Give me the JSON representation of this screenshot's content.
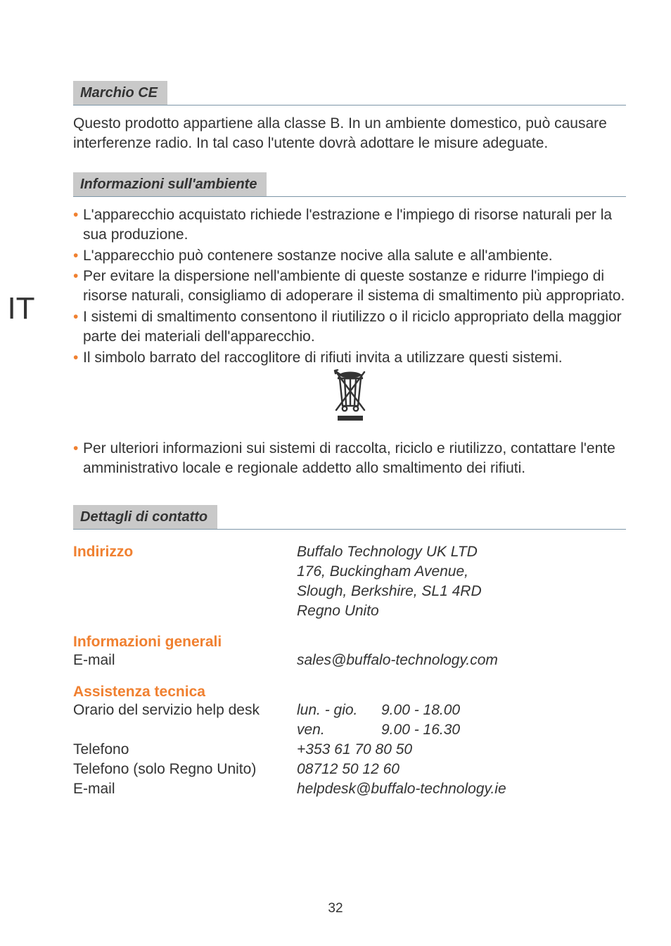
{
  "lang_tab": "IT",
  "section1": {
    "heading": "Marchio CE",
    "paragraph": "Questo prodotto appartiene alla classe B. In un ambiente domestico, può causare interferenze radio. In tal caso l'utente dovrà adottare le misure adeguate."
  },
  "section2": {
    "heading": "Informazioni sull'ambiente",
    "bullets_top": [
      "L'apparecchio acquistato richiede l'estrazione e l'impiego di risorse naturali per la sua produzione.",
      "L'apparecchio può contenere sostanze nocive alla salute e all'ambiente.",
      "Per evitare la dispersione nell'ambiente di queste sostanze e ridurre l'impiego di risorse naturali, consigliamo di adoperare il sistema di smaltimento più appropriato.",
      "I sistemi di smaltimento consentono il riutilizzo o il riciclo appropriato della maggior parte dei materiali dell'apparecchio.",
      "Il simbolo barrato del raccoglitore di rifiuti invita a utilizzare questi sistemi."
    ],
    "bullets_bottom": [
      "Per ulteriori informazioni sui sistemi di raccolta, riciclo e riutilizzo, contattare l'ente amministrativo locale e regionale addetto allo smaltimento dei rifiuti."
    ]
  },
  "section3": {
    "heading": "Dettagli di contatto",
    "address": {
      "label": "Indirizzo",
      "lines": [
        "Buffalo Technology UK LTD",
        "176, Buckingham Avenue,",
        "Slough, Berkshire, SL1 4RD",
        "Regno Unito"
      ]
    },
    "general": {
      "label": "Informazioni generali",
      "email_label": "E-mail",
      "email_value": "sales@buffalo-technology.com"
    },
    "support": {
      "label": "Assistenza tecnica",
      "hours_label": "Orario del servizio help desk",
      "hours": [
        {
          "days": "lun. - gio.",
          "time": "9.00 - 18.00"
        },
        {
          "days": "ven.",
          "time": "9.00 - 16.30"
        }
      ],
      "phone_label": "Telefono",
      "phone_value": "+353 61 70 80 50",
      "phone_uk_label": "Telefono (solo Regno Unito)",
      "phone_uk_value": "08712 50 12 60",
      "email_label": "E-mail",
      "email_value": "helpdesk@buffalo-technology.ie"
    }
  },
  "page_number": "32",
  "colors": {
    "accent": "#f08030",
    "heading_bg": "#c9c9c9",
    "rule": "#7d96a8",
    "text": "#333333"
  }
}
